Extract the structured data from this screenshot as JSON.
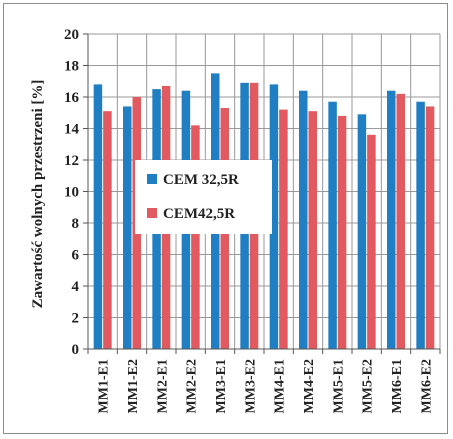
{
  "chart_data": {
    "type": "bar",
    "categories": [
      "MM1-E1",
      "MM1-E2",
      "MM2-E1",
      "MM2-E2",
      "MM3-E1",
      "MM3-E2",
      "MM4-E1",
      "MM4-E2",
      "MM5-E1",
      "MM5-E2",
      "MM6-E1",
      "MM6-E2"
    ],
    "series": [
      {
        "name": "CEM 32,5R",
        "color": "#1f7fc2",
        "values": [
          16.8,
          15.4,
          16.5,
          16.4,
          17.5,
          16.9,
          16.8,
          16.4,
          15.7,
          14.9,
          16.4,
          15.7
        ]
      },
      {
        "name": "CEM42,5R",
        "color": "#e05a5f",
        "values": [
          15.1,
          16.0,
          16.7,
          14.2,
          15.3,
          16.9,
          15.2,
          15.1,
          14.8,
          13.6,
          16.2,
          15.4
        ]
      }
    ],
    "yticks": [
      0,
      2,
      4,
      6,
      8,
      10,
      12,
      14,
      16,
      18,
      20
    ],
    "ylim": [
      0,
      20
    ],
    "ylabel": "Zawartość wolnych przestrzeni  [%]",
    "xlabel": "",
    "title": "",
    "grid": true,
    "legend_position": "left-center"
  }
}
